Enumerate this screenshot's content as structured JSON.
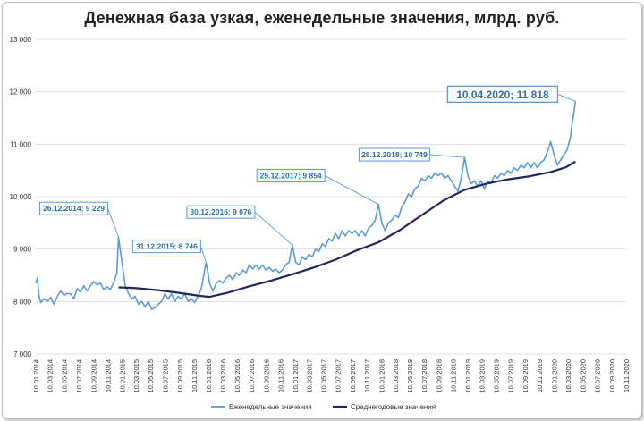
{
  "chart_data": {
    "type": "line",
    "title": "Денежная база узкая, еженедельные значения, млрд. руб.",
    "ylim": [
      7000,
      13000
    ],
    "yticks": [
      7000,
      8000,
      9000,
      10000,
      11000,
      12000,
      13000
    ],
    "ytick_labels": [
      "7 000",
      "8 000",
      "9 000",
      "10 000",
      "11 000",
      "12 000",
      "13 000"
    ],
    "xlim": [
      "2014-01-10",
      "2020-11-10"
    ],
    "x_ticks": [
      "2014-01-10",
      "2014-03-10",
      "2014-05-10",
      "2014-07-10",
      "2014-09-10",
      "2014-11-10",
      "2015-01-10",
      "2015-03-10",
      "2015-05-10",
      "2015-07-10",
      "2015-09-10",
      "2015-11-10",
      "2016-01-10",
      "2016-03-10",
      "2016-05-10",
      "2016-07-10",
      "2016-09-10",
      "2016-11-10",
      "2017-01-10",
      "2017-03-10",
      "2017-05-10",
      "2017-07-10",
      "2017-09-10",
      "2017-11-10",
      "2018-01-10",
      "2018-03-10",
      "2018-05-10",
      "2018-07-10",
      "2018-09-10",
      "2018-11-10",
      "2019-01-10",
      "2019-03-10",
      "2019-05-10",
      "2019-07-10",
      "2019-09-10",
      "2019-11-10",
      "2020-01-10",
      "2020-03-10",
      "2020-05-10",
      "2020-07-10",
      "2020-09-10",
      "2020-11-10"
    ],
    "x_tick_labels": [
      "10.01.2014",
      "10.03.2014",
      "10.05.2014",
      "10.07.2014",
      "10.09.2014",
      "10.11.2014",
      "10.01.2015",
      "10.03.2015",
      "10.05.2015",
      "10.07.2015",
      "10.09.2015",
      "10.11.2015",
      "10.01.2016",
      "10.03.2016",
      "10.05.2016",
      "10.07.2016",
      "10.09.2016",
      "10.11.2016",
      "10.01.2017",
      "10.03.2017",
      "10.05.2017",
      "10.07.2017",
      "10.09.2017",
      "10.11.2017",
      "10.01.2018",
      "10.03.2018",
      "10.05.2018",
      "10.07.2018",
      "10.09.2018",
      "10.11.2018",
      "10.01.2019",
      "10.03.2019",
      "10.05.2019",
      "10.07.2019",
      "10.09.2019",
      "10.11.2019",
      "10.01.2020",
      "10.03.2020",
      "10.05.2020",
      "10.07.2020",
      "10.09.2020",
      "10.11.2020"
    ],
    "grid": true,
    "legend_position": "bottom-center",
    "series": [
      {
        "name": "Еженедельные значения",
        "color": "#5b9bd5",
        "points": [
          [
            "2014-01-10",
            8350
          ],
          [
            "2014-01-17",
            8450
          ],
          [
            "2014-01-24",
            8100
          ],
          [
            "2014-01-31",
            7980
          ],
          [
            "2014-02-14",
            8050
          ],
          [
            "2014-02-28",
            8000
          ],
          [
            "2014-03-14",
            8080
          ],
          [
            "2014-03-28",
            7950
          ],
          [
            "2014-04-11",
            8100
          ],
          [
            "2014-04-25",
            8200
          ],
          [
            "2014-05-09",
            8120
          ],
          [
            "2014-05-23",
            8150
          ],
          [
            "2014-06-06",
            8150
          ],
          [
            "2014-06-20",
            8050
          ],
          [
            "2014-07-04",
            8250
          ],
          [
            "2014-07-18",
            8180
          ],
          [
            "2014-08-01",
            8300
          ],
          [
            "2014-08-15",
            8200
          ],
          [
            "2014-08-29",
            8300
          ],
          [
            "2014-09-12",
            8380
          ],
          [
            "2014-09-26",
            8320
          ],
          [
            "2014-10-10",
            8350
          ],
          [
            "2014-10-24",
            8230
          ],
          [
            "2014-11-07",
            8280
          ],
          [
            "2014-11-21",
            8230
          ],
          [
            "2014-12-05",
            8350
          ],
          [
            "2014-12-19",
            8550
          ],
          [
            "2014-12-26",
            9229
          ],
          [
            "2015-01-09",
            8750
          ],
          [
            "2015-01-23",
            8300
          ],
          [
            "2015-02-06",
            8150
          ],
          [
            "2015-02-20",
            8050
          ],
          [
            "2015-03-06",
            8100
          ],
          [
            "2015-03-20",
            7950
          ],
          [
            "2015-04-03",
            8000
          ],
          [
            "2015-04-17",
            7900
          ],
          [
            "2015-05-01",
            8000
          ],
          [
            "2015-05-15",
            7850
          ],
          [
            "2015-05-29",
            7880
          ],
          [
            "2015-06-12",
            7950
          ],
          [
            "2015-06-26",
            8000
          ],
          [
            "2015-07-10",
            8150
          ],
          [
            "2015-07-24",
            8050
          ],
          [
            "2015-08-07",
            8150
          ],
          [
            "2015-08-21",
            8000
          ],
          [
            "2015-09-04",
            8100
          ],
          [
            "2015-09-18",
            8050
          ],
          [
            "2015-10-02",
            8150
          ],
          [
            "2015-10-16",
            8000
          ],
          [
            "2015-10-30",
            8050
          ],
          [
            "2015-11-13",
            7980
          ],
          [
            "2015-11-27",
            8100
          ],
          [
            "2015-12-11",
            8250
          ],
          [
            "2015-12-31",
            8746
          ],
          [
            "2016-01-15",
            8350
          ],
          [
            "2016-01-29",
            8200
          ],
          [
            "2016-02-12",
            8350
          ],
          [
            "2016-02-26",
            8400
          ],
          [
            "2016-03-11",
            8350
          ],
          [
            "2016-03-25",
            8450
          ],
          [
            "2016-04-08",
            8500
          ],
          [
            "2016-04-22",
            8420
          ],
          [
            "2016-05-06",
            8550
          ],
          [
            "2016-05-20",
            8500
          ],
          [
            "2016-06-03",
            8600
          ],
          [
            "2016-06-17",
            8550
          ],
          [
            "2016-07-01",
            8700
          ],
          [
            "2016-07-15",
            8620
          ],
          [
            "2016-07-29",
            8700
          ],
          [
            "2016-08-12",
            8620
          ],
          [
            "2016-08-26",
            8700
          ],
          [
            "2016-09-09",
            8600
          ],
          [
            "2016-09-23",
            8650
          ],
          [
            "2016-10-07",
            8580
          ],
          [
            "2016-10-21",
            8620
          ],
          [
            "2016-11-04",
            8550
          ],
          [
            "2016-11-18",
            8600
          ],
          [
            "2016-12-02",
            8700
          ],
          [
            "2016-12-16",
            8750
          ],
          [
            "2016-12-30",
            9076
          ],
          [
            "2017-01-13",
            8750
          ],
          [
            "2017-01-27",
            8700
          ],
          [
            "2017-02-10",
            8850
          ],
          [
            "2017-02-24",
            8800
          ],
          [
            "2017-03-10",
            8900
          ],
          [
            "2017-03-24",
            8850
          ],
          [
            "2017-04-07",
            9000
          ],
          [
            "2017-04-21",
            8950
          ],
          [
            "2017-05-05",
            9100
          ],
          [
            "2017-05-19",
            9050
          ],
          [
            "2017-06-02",
            9200
          ],
          [
            "2017-06-16",
            9150
          ],
          [
            "2017-06-30",
            9300
          ],
          [
            "2017-07-14",
            9200
          ],
          [
            "2017-07-28",
            9350
          ],
          [
            "2017-08-11",
            9250
          ],
          [
            "2017-08-25",
            9350
          ],
          [
            "2017-09-08",
            9300
          ],
          [
            "2017-09-22",
            9350
          ],
          [
            "2017-10-06",
            9250
          ],
          [
            "2017-10-20",
            9350
          ],
          [
            "2017-11-03",
            9250
          ],
          [
            "2017-11-17",
            9400
          ],
          [
            "2017-12-01",
            9450
          ],
          [
            "2017-12-15",
            9550
          ],
          [
            "2017-12-29",
            9854
          ],
          [
            "2018-01-12",
            9500
          ],
          [
            "2018-01-26",
            9350
          ],
          [
            "2018-02-09",
            9500
          ],
          [
            "2018-02-23",
            9550
          ],
          [
            "2018-03-09",
            9650
          ],
          [
            "2018-03-23",
            9600
          ],
          [
            "2018-04-06",
            9800
          ],
          [
            "2018-04-20",
            9900
          ],
          [
            "2018-05-04",
            10050
          ],
          [
            "2018-05-18",
            10000
          ],
          [
            "2018-06-01",
            10150
          ],
          [
            "2018-06-15",
            10200
          ],
          [
            "2018-06-29",
            10350
          ],
          [
            "2018-07-13",
            10300
          ],
          [
            "2018-07-27",
            10400
          ],
          [
            "2018-08-10",
            10350
          ],
          [
            "2018-08-24",
            10450
          ],
          [
            "2018-09-07",
            10400
          ],
          [
            "2018-09-21",
            10450
          ],
          [
            "2018-10-05",
            10350
          ],
          [
            "2018-10-19",
            10400
          ],
          [
            "2018-11-02",
            10300
          ],
          [
            "2018-11-16",
            10200
          ],
          [
            "2018-11-30",
            10100
          ],
          [
            "2018-12-14",
            10350
          ],
          [
            "2018-12-28",
            10749
          ],
          [
            "2019-01-11",
            10400
          ],
          [
            "2019-01-25",
            10250
          ],
          [
            "2019-02-08",
            10300
          ],
          [
            "2019-02-22",
            10200
          ],
          [
            "2019-03-08",
            10300
          ],
          [
            "2019-03-22",
            10150
          ],
          [
            "2019-04-05",
            10300
          ],
          [
            "2019-04-19",
            10250
          ],
          [
            "2019-05-03",
            10400
          ],
          [
            "2019-05-17",
            10350
          ],
          [
            "2019-05-31",
            10450
          ],
          [
            "2019-06-14",
            10400
          ],
          [
            "2019-06-28",
            10500
          ],
          [
            "2019-07-12",
            10450
          ],
          [
            "2019-07-26",
            10550
          ],
          [
            "2019-08-09",
            10500
          ],
          [
            "2019-08-23",
            10600
          ],
          [
            "2019-09-06",
            10550
          ],
          [
            "2019-09-20",
            10650
          ],
          [
            "2019-10-04",
            10550
          ],
          [
            "2019-10-18",
            10650
          ],
          [
            "2019-11-01",
            10550
          ],
          [
            "2019-11-15",
            10650
          ],
          [
            "2019-11-29",
            10700
          ],
          [
            "2019-12-13",
            10850
          ],
          [
            "2019-12-27",
            11050
          ],
          [
            "2020-01-10",
            10800
          ],
          [
            "2020-01-24",
            10600
          ],
          [
            "2020-02-07",
            10700
          ],
          [
            "2020-02-21",
            10800
          ],
          [
            "2020-03-06",
            10900
          ],
          [
            "2020-03-20",
            11150
          ],
          [
            "2020-03-27",
            11400
          ],
          [
            "2020-04-03",
            11600
          ],
          [
            "2020-04-10",
            11818
          ]
        ]
      },
      {
        "name": "Среднегодовые значения",
        "color": "#1f2860",
        "points": [
          [
            "2014-12-26",
            8270
          ],
          [
            "2015-03-01",
            8260
          ],
          [
            "2015-06-01",
            8220
          ],
          [
            "2015-09-01",
            8170
          ],
          [
            "2015-12-01",
            8110
          ],
          [
            "2016-01-15",
            8090
          ],
          [
            "2016-04-01",
            8170
          ],
          [
            "2016-07-01",
            8290
          ],
          [
            "2016-10-01",
            8400
          ],
          [
            "2016-12-30",
            8520
          ],
          [
            "2017-04-01",
            8650
          ],
          [
            "2017-07-01",
            8800
          ],
          [
            "2017-10-01",
            8980
          ],
          [
            "2017-12-29",
            9130
          ],
          [
            "2018-04-01",
            9370
          ],
          [
            "2018-07-01",
            9650
          ],
          [
            "2018-10-01",
            9930
          ],
          [
            "2018-12-28",
            10130
          ],
          [
            "2019-04-01",
            10250
          ],
          [
            "2019-07-01",
            10330
          ],
          [
            "2019-10-01",
            10390
          ],
          [
            "2019-12-27",
            10470
          ],
          [
            "2020-03-01",
            10560
          ],
          [
            "2020-04-10",
            10670
          ]
        ]
      }
    ],
    "annotations": [
      {
        "text": "26.12.2014; 9 229",
        "x": "2014-12-26",
        "y": 9229,
        "size": "small"
      },
      {
        "text": "31.12.2015; 8 746",
        "x": "2015-12-31",
        "y": 8746,
        "size": "small"
      },
      {
        "text": "30.12.2016; 9 076",
        "x": "2016-12-30",
        "y": 9076,
        "size": "small"
      },
      {
        "text": "29.12.2017; 9 854",
        "x": "2017-12-29",
        "y": 9854,
        "size": "small"
      },
      {
        "text": "28.12.2018; 10 749",
        "x": "2018-12-28",
        "y": 10749,
        "size": "small"
      },
      {
        "text": "10.04.2020; 11 818",
        "x": "2020-04-10",
        "y": 11818,
        "size": "large"
      }
    ]
  }
}
